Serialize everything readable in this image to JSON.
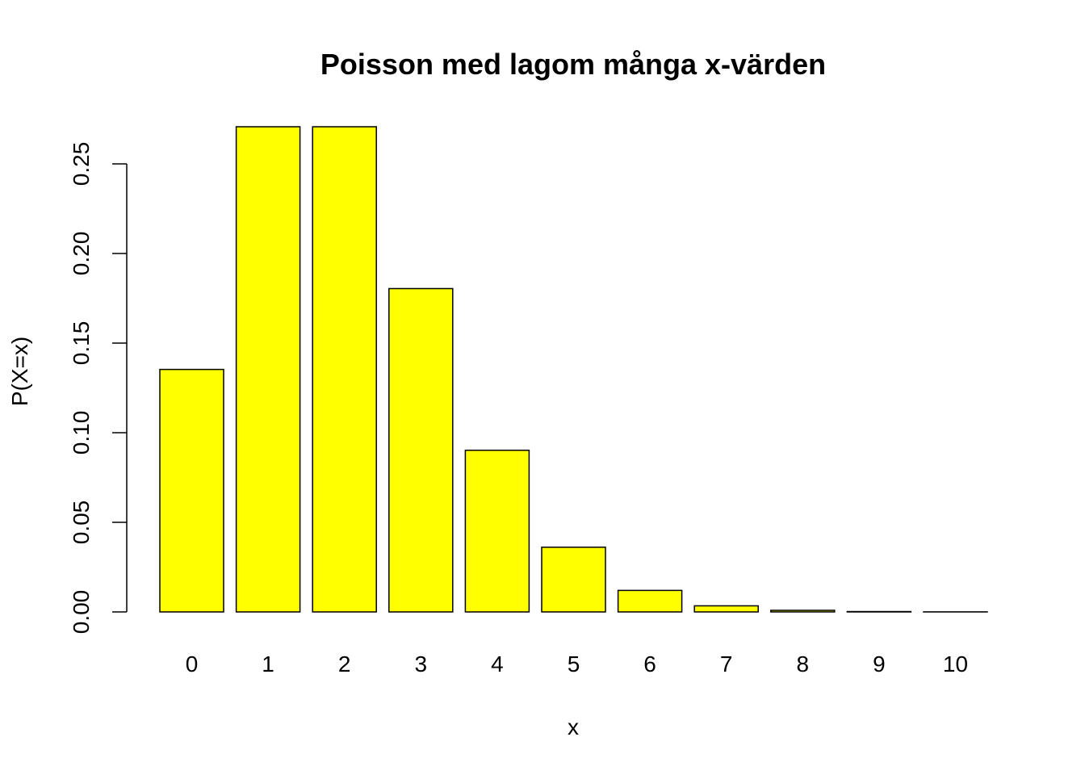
{
  "chart_data": {
    "type": "bar",
    "title": "Poisson med lagom många x-värden",
    "xlabel": "x",
    "ylabel": "P(X=x)",
    "categories": [
      "0",
      "1",
      "2",
      "3",
      "4",
      "5",
      "6",
      "7",
      "8",
      "9",
      "10"
    ],
    "values": [
      0.1353,
      0.2707,
      0.2707,
      0.1804,
      0.0902,
      0.0361,
      0.012,
      0.0034,
      0.0009,
      0.0002,
      4e-05
    ],
    "ylim": [
      0,
      0.2707
    ],
    "yticks": [
      0.0,
      0.05,
      0.1,
      0.15,
      0.2,
      0.25
    ],
    "ytick_labels": [
      "0.00",
      "0.05",
      "0.10",
      "0.15",
      "0.20",
      "0.25"
    ],
    "grid": false,
    "legend": "none",
    "bar_color": "#ffff00",
    "bar_border_color": "#000000"
  }
}
